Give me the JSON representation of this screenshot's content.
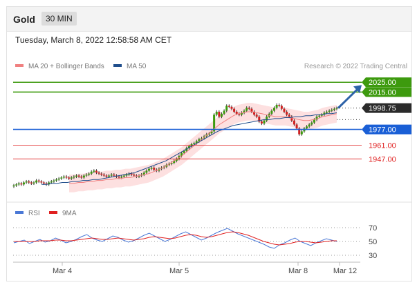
{
  "header": {
    "title": "Gold",
    "period": "30 MIN"
  },
  "timestamp": "Tuesday, March 8, 2022 12:58:58 AM CET",
  "legend": [
    {
      "label": "MA 20 + Bollinger Bands",
      "color": "#f08080"
    },
    {
      "label": "MA 50",
      "color": "#1f4e8c"
    }
  ],
  "copyright": "Research © 2022 Trading Central",
  "rsi_legend": [
    {
      "label": "RSI",
      "color": "#4a78d6"
    },
    {
      "label": "9MA",
      "color": "#e02020"
    }
  ],
  "colors": {
    "resistance": "#3d9a0e",
    "pivot": "#1a5fd6",
    "support": "#e02020",
    "candle_up": "#3d9a0e",
    "candle_down": "#d02020",
    "band_fill": "#fde0e0",
    "arrow": "#2e63a8"
  },
  "chart_data": {
    "type": "candlestick",
    "ylim": [
      1910,
      2035
    ],
    "x_ticks": [
      "Mar 4",
      "Mar 5",
      "Mar 8",
      "Mar 12"
    ],
    "levels": [
      {
        "value": 2025.0,
        "label": "2025.00",
        "kind": "resistance"
      },
      {
        "value": 2015.0,
        "label": "2015.00",
        "kind": "resistance"
      },
      {
        "value": 1998.75,
        "label": "1998.75",
        "kind": "last"
      },
      {
        "value": 1977.0,
        "label": "1977.00",
        "kind": "pivot"
      },
      {
        "value": 1961.0,
        "label": "1961.00",
        "kind": "support"
      },
      {
        "value": 1947.0,
        "label": "1947.00",
        "kind": "support"
      }
    ],
    "close": [
      1920,
      1921,
      1922,
      1921,
      1923,
      1924,
      1923,
      1922,
      1923,
      1925,
      1924,
      1923,
      1922,
      1921,
      1923,
      1924,
      1925,
      1926,
      1927,
      1928,
      1929,
      1928,
      1927,
      1928,
      1929,
      1930,
      1929,
      1928,
      1930,
      1931,
      1932,
      1934,
      1935,
      1933,
      1932,
      1931,
      1930,
      1929,
      1930,
      1931,
      1930,
      1929,
      1928,
      1929,
      1930,
      1931,
      1932,
      1931,
      1930,
      1929,
      1930,
      1931,
      1933,
      1935,
      1937,
      1938,
      1936,
      1935,
      1937,
      1938,
      1939,
      1941,
      1942,
      1943,
      1945,
      1947,
      1950,
      1953,
      1955,
      1958,
      1960,
      1962,
      1963,
      1965,
      1967,
      1968,
      1970,
      1972,
      1973,
      1975,
      1992,
      1995,
      1990,
      1993,
      1996,
      2001,
      2000,
      1998,
      1995,
      1993,
      1992,
      1994,
      1996,
      1999,
      1998,
      1995,
      1992,
      1990,
      1985,
      1983,
      1986,
      1990,
      1993,
      1996,
      1999,
      2002,
      2001,
      1998,
      1995,
      1992,
      1990,
      1986,
      1982,
      1978,
      1972,
      1975,
      1978,
      1980,
      1982,
      1984,
      1987,
      1990,
      1991,
      1992,
      1994,
      1995,
      1996,
      1997,
      1998,
      1998.75
    ],
    "ma20": [
      1922,
      1922,
      1923,
      1923,
      1924,
      1924,
      1925,
      1925,
      1926,
      1926,
      1927,
      1927,
      1928,
      1928,
      1929,
      1930,
      1931,
      1932,
      1934,
      1936,
      1938,
      1941,
      1944,
      1947,
      1950,
      1954,
      1958,
      1962,
      1966,
      1970,
      1974,
      1978,
      1982,
      1985,
      1988,
      1991,
      1993,
      1994,
      1995,
      1995,
      1994,
      1993,
      1992,
      1991,
      1990,
      1990,
      1990,
      1989,
      1988,
      1987,
      1986,
      1986,
      1987,
      1988,
      1990,
      1991,
      1992,
      1993
    ],
    "ma50": [
      1921,
      1921,
      1922,
      1922,
      1923,
      1923,
      1924,
      1924,
      1925,
      1925,
      1926,
      1926,
      1927,
      1928,
      1929,
      1930,
      1931,
      1932,
      1933,
      1935,
      1937,
      1939,
      1941,
      1943,
      1945,
      1948,
      1951,
      1954,
      1957,
      1960,
      1963,
      1966,
      1969,
      1972,
      1975,
      1977,
      1979,
      1981,
      1982,
      1983,
      1984,
      1985,
      1986,
      1987,
      1987,
      1988,
      1988,
      1989,
      1989,
      1990,
      1990,
      1991,
      1991,
      1992,
      1992,
      1993,
      1993,
      1994
    ],
    "rsi": {
      "ylim": [
        22,
        78
      ],
      "ticks": [
        70,
        50,
        30
      ],
      "rsi": [
        48,
        50,
        52,
        47,
        50,
        53,
        49,
        51,
        55,
        52,
        48,
        50,
        53,
        57,
        60,
        55,
        52,
        50,
        54,
        58,
        56,
        52,
        49,
        51,
        55,
        59,
        62,
        58,
        54,
        50,
        53,
        57,
        61,
        64,
        60,
        56,
        52,
        55,
        59,
        63,
        66,
        69,
        65,
        61,
        58,
        55,
        52,
        49,
        46,
        42,
        40,
        45,
        48,
        52,
        55,
        50,
        47,
        44,
        48,
        51,
        54,
        52,
        50
      ],
      "ma9": [
        50,
        50,
        50,
        50,
        50,
        51,
        51,
        51,
        52,
        52,
        51,
        51,
        52,
        53,
        54,
        55,
        54,
        53,
        53,
        54,
        55,
        54,
        53,
        52,
        53,
        54,
        56,
        57,
        56,
        55,
        54,
        55,
        57,
        59,
        60,
        59,
        57,
        56,
        57,
        59,
        61,
        63,
        64,
        63,
        61,
        59,
        56,
        53,
        50,
        48,
        46,
        45,
        46,
        47,
        49,
        50,
        50,
        49,
        48,
        49,
        50,
        51,
        51
      ]
    }
  }
}
